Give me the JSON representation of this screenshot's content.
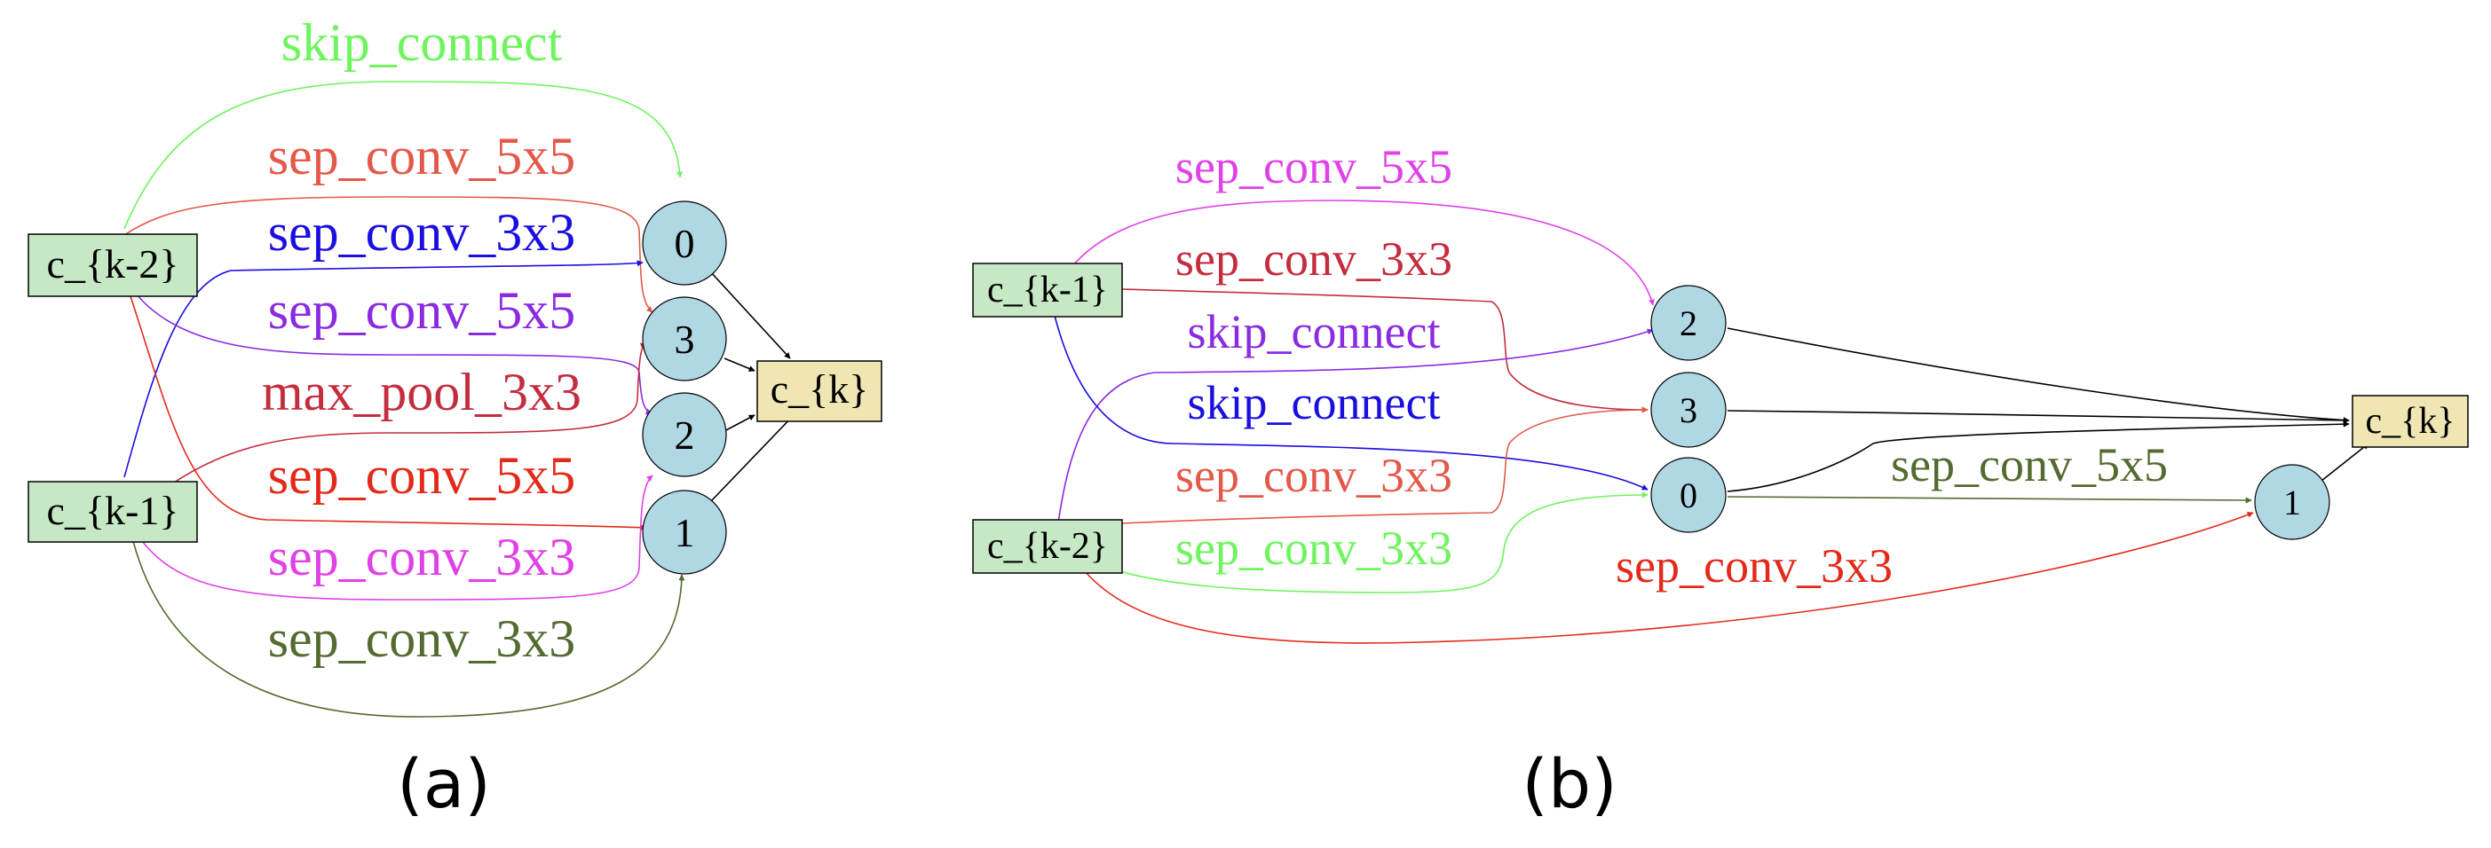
{
  "colors": {
    "input_fill": "#c6e8c4",
    "output_fill": "#f0e6b4",
    "op_node_fill": "#b0d7e4",
    "node_stroke": "#000000",
    "default_edge": "#000000"
  },
  "diagrams": [
    {
      "caption": "(a)",
      "inputs": [
        {
          "id": "a_ck2",
          "label": "c_{k-2}"
        },
        {
          "id": "a_ck1",
          "label": "c_{k-1}"
        }
      ],
      "op_nodes": [
        {
          "id": "a_n0",
          "label": "0"
        },
        {
          "id": "a_n3",
          "label": "3"
        },
        {
          "id": "a_n2",
          "label": "2"
        },
        {
          "id": "a_n1",
          "label": "1"
        }
      ],
      "output": {
        "id": "a_ck",
        "label": "c_{k}"
      },
      "edges": [
        {
          "from": "c_{k-2}",
          "to": "0",
          "op": "skip_connect",
          "color": "#6ef55e"
        },
        {
          "from": "c_{k-2}",
          "to": "3",
          "op": "sep_conv_5x5",
          "color": "#e4584a"
        },
        {
          "from": "c_{k-1}",
          "to": "0",
          "op": "sep_conv_3x3",
          "color": "#1a0ee0"
        },
        {
          "from": "c_{k-2}",
          "to": "2",
          "op": "sep_conv_5x5",
          "color": "#8a2be2"
        },
        {
          "from": "c_{k-1}",
          "to": "3",
          "op": "max_pool_3x3",
          "color": "#c42d3e"
        },
        {
          "from": "c_{k-2}",
          "to": "1",
          "op": "sep_conv_5x5",
          "color": "#e32a1a"
        },
        {
          "from": "c_{k-1}",
          "to": "2",
          "op": "sep_conv_3x3",
          "color": "#e040e8"
        },
        {
          "from": "c_{k-1}",
          "to": "1",
          "op": "sep_conv_3x3",
          "color": "#546b30"
        }
      ]
    },
    {
      "caption": "(b)",
      "inputs": [
        {
          "id": "b_ck1",
          "label": "c_{k-1}"
        },
        {
          "id": "b_ck2",
          "label": "c_{k-2}"
        }
      ],
      "op_nodes": [
        {
          "id": "b_n2",
          "label": "2"
        },
        {
          "id": "b_n3",
          "label": "3"
        },
        {
          "id": "b_n0",
          "label": "0"
        },
        {
          "id": "b_n1",
          "label": "1"
        }
      ],
      "output": {
        "id": "b_ck",
        "label": "c_{k}"
      },
      "edges": [
        {
          "from": "c_{k-1}",
          "to": "2",
          "op": "sep_conv_5x5",
          "color": "#e040e8"
        },
        {
          "from": "c_{k-1}",
          "to": "3",
          "op": "sep_conv_3x3",
          "color": "#c42d3e"
        },
        {
          "from": "c_{k-2}",
          "to": "2",
          "op": "skip_connect",
          "color": "#8a2be2"
        },
        {
          "from": "c_{k-1}",
          "to": "0",
          "op": "skip_connect",
          "color": "#1a0ee0"
        },
        {
          "from": "c_{k-2}",
          "to": "3",
          "op": "sep_conv_3x3",
          "color": "#e4584a"
        },
        {
          "from": "c_{k-2}",
          "to": "0",
          "op": "sep_conv_3x3",
          "color": "#6ef55e"
        },
        {
          "from": "0",
          "to": "1",
          "op": "sep_conv_5x5",
          "color": "#546b30"
        },
        {
          "from": "c_{k-2}",
          "to": "1",
          "op": "sep_conv_3x3",
          "color": "#e32a1a"
        }
      ]
    }
  ]
}
